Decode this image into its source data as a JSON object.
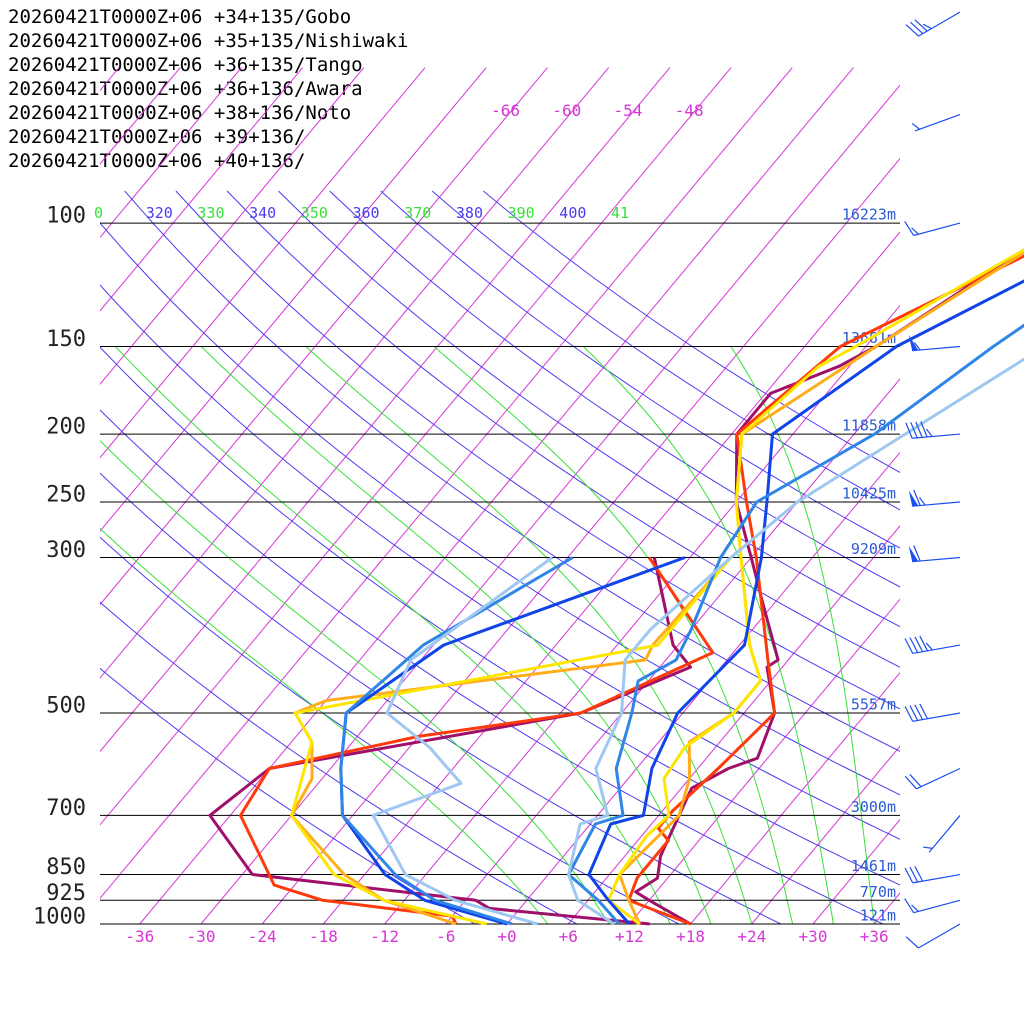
{
  "legend": [
    {
      "label": "20260421T0000Z+06 +34+135/Gobo",
      "color": "#a0106a"
    },
    {
      "label": "20260421T0000Z+06 +35+135/Nishiwaki",
      "color": "#ff3a0a"
    },
    {
      "label": "20260421T0000Z+06 +36+135/Tango",
      "color": "#ffae1a"
    },
    {
      "label": "20260421T0000Z+06 +36+136/Awara",
      "color": "#ffe600"
    },
    {
      "label": "20260421T0000Z+06 +38+136/Noto",
      "color": "#1044e8"
    },
    {
      "label": "20260421T0000Z+06 +39+136/",
      "color": "#2f86e6"
    },
    {
      "label": "20260421T0000Z+06 +40+136/",
      "color": "#9ec8f2"
    }
  ],
  "colors": {
    "isobar": "#000000",
    "isotherm": "#d636d6",
    "dry_adiabat": "#4a3cf0",
    "moist_adiabat": "#38e038",
    "height_label": "#2a5ad6",
    "wind_barb": "#1b4ef0"
  },
  "chart_data": {
    "type": "line",
    "pressure_levels": [
      {
        "p": 100,
        "label": "100",
        "height": "16223m"
      },
      {
        "p": 150,
        "label": "150",
        "height": "13661m"
      },
      {
        "p": 200,
        "label": "200",
        "height": "11858m"
      },
      {
        "p": 250,
        "label": "250",
        "height": "10425m"
      },
      {
        "p": 300,
        "label": "300",
        "height": "9209m"
      },
      {
        "p": 500,
        "label": "500",
        "height": "5557m"
      },
      {
        "p": 700,
        "label": "700",
        "height": "3000m"
      },
      {
        "p": 850,
        "label": "850",
        "height": "1461m"
      },
      {
        "p": 925,
        "label": "925",
        "height": "770m"
      },
      {
        "p": 1000,
        "label": "1000",
        "height": "121m"
      }
    ],
    "x_ticks": [
      "-36",
      "-30",
      "-24",
      "-18",
      "-12",
      "-6",
      "+0",
      "+6",
      "+12",
      "+18",
      "+24",
      "+30",
      "+36"
    ],
    "x_tick_values": [
      -36,
      -30,
      -24,
      -18,
      -12,
      -6,
      0,
      6,
      12,
      18,
      24,
      30,
      36
    ],
    "upper_isotherm_labels": [
      "-66",
      "-60",
      "-54",
      "-48"
    ],
    "theta_labels": [
      {
        "text": "0",
        "color": "#38e038"
      },
      {
        "text": "320",
        "color": "#4a3cf0"
      },
      {
        "text": "330",
        "color": "#38e038"
      },
      {
        "text": "340",
        "color": "#4a3cf0"
      },
      {
        "text": "350",
        "color": "#38e038"
      },
      {
        "text": "360",
        "color": "#4a3cf0"
      },
      {
        "text": "370",
        "color": "#38e038"
      },
      {
        "text": "380",
        "color": "#4a3cf0"
      },
      {
        "text": "390",
        "color": "#38e038"
      },
      {
        "text": "400",
        "color": "#4a3cf0"
      },
      {
        "text": "41",
        "color": "#38e038"
      }
    ],
    "series": [
      {
        "name": "20260421T0000Z+06 +34+135/Gobo",
        "temperature": [
          [
            1000,
            18
          ],
          [
            925,
            12
          ],
          [
            900,
            10
          ],
          [
            860,
            11
          ],
          [
            800,
            9.5
          ],
          [
            700,
            8
          ],
          [
            640,
            7
          ],
          [
            600,
            9
          ],
          [
            580,
            11
          ],
          [
            500,
            9
          ],
          [
            430,
            4.5
          ],
          [
            420,
            5
          ],
          [
            350,
            -1
          ],
          [
            300,
            -6
          ],
          [
            250,
            -12
          ],
          [
            200,
            -17.5
          ],
          [
            175,
            -17.5
          ],
          [
            160,
            -13
          ],
          [
            150,
            -11
          ],
          [
            100,
            -2.5
          ],
          [
            70,
            -2
          ],
          [
            55,
            13
          ]
        ],
        "dewpoint": [
          [
            1000,
            14
          ],
          [
            950,
            -3
          ],
          [
            925,
            -5
          ],
          [
            850,
            -29
          ],
          [
            700,
            -38
          ],
          [
            600,
            -36
          ],
          [
            500,
            -10
          ],
          [
            430,
            -3
          ],
          [
            400,
            -6.5
          ],
          [
            300,
            -15.5
          ]
        ]
      },
      {
        "name": "20260421T0000Z+06 +35+135/Nishiwaki",
        "temperature": [
          [
            1000,
            18
          ],
          [
            925,
            10
          ],
          [
            860,
            9
          ],
          [
            760,
            9
          ],
          [
            730,
            7
          ],
          [
            690,
            7
          ],
          [
            600,
            8
          ],
          [
            500,
            9
          ],
          [
            420,
            4
          ],
          [
            300,
            -5.5
          ],
          [
            250,
            -11
          ],
          [
            200,
            -17.5
          ],
          [
            150,
            -14.5
          ],
          [
            100,
            0
          ],
          [
            60,
            10
          ]
        ],
        "dewpoint": [
          [
            1000,
            -5
          ],
          [
            975,
            -6
          ],
          [
            925,
            -20
          ],
          [
            880,
            -26
          ],
          [
            700,
            -35
          ],
          [
            600,
            -36
          ],
          [
            540,
            -24
          ],
          [
            500,
            -10
          ],
          [
            410,
            -2
          ],
          [
            300,
            -16
          ]
        ]
      },
      {
        "name": "20260421T0000Z+06 +36+135/Tango",
        "temperature": [
          [
            1000,
            13
          ],
          [
            925,
            10
          ],
          [
            850,
            7
          ],
          [
            700,
            8
          ],
          [
            620,
            6
          ],
          [
            550,
            3
          ],
          [
            500,
            5
          ],
          [
            450,
            5
          ],
          [
            400,
            1
          ],
          [
            300,
            -7
          ],
          [
            250,
            -12
          ],
          [
            200,
            -17
          ],
          [
            150,
            -11
          ],
          [
            100,
            -2
          ],
          [
            70,
            10
          ]
        ],
        "dewpoint": [
          [
            1000,
            -5
          ],
          [
            925,
            -14
          ],
          [
            850,
            -20
          ],
          [
            700,
            -30
          ],
          [
            620,
            -31
          ],
          [
            550,
            -34
          ],
          [
            500,
            -38
          ],
          [
            480,
            -36
          ],
          [
            420,
            -8
          ],
          [
            400,
            -8.5
          ],
          [
            300,
            -8
          ]
        ]
      },
      {
        "name": "20260421T0000Z+06 +36+136/Awara",
        "temperature": [
          [
            1000,
            13
          ],
          [
            925,
            8
          ],
          [
            850,
            7
          ],
          [
            750,
            6.5
          ],
          [
            700,
            7
          ],
          [
            620,
            3.5
          ],
          [
            560,
            3
          ],
          [
            500,
            5
          ],
          [
            450,
            5
          ],
          [
            400,
            1
          ],
          [
            300,
            -7
          ],
          [
            250,
            -12
          ],
          [
            200,
            -17
          ],
          [
            160,
            -15
          ],
          [
            150,
            -13
          ],
          [
            100,
            -2
          ],
          [
            70,
            8
          ]
        ],
        "dewpoint": [
          [
            1000,
            -2
          ],
          [
            925,
            -14
          ],
          [
            850,
            -21
          ],
          [
            700,
            -30
          ],
          [
            620,
            -32
          ],
          [
            550,
            -34
          ],
          [
            500,
            -38
          ],
          [
            400,
            -8
          ],
          [
            300,
            -8
          ]
        ]
      },
      {
        "name": "20260421T0000Z+06 +38+136/Noto",
        "temperature": [
          [
            1000,
            12
          ],
          [
            925,
            8
          ],
          [
            850,
            4
          ],
          [
            720,
            2
          ],
          [
            700,
            4.5
          ],
          [
            600,
            1.5
          ],
          [
            500,
            -0.5
          ],
          [
            400,
            0.5
          ],
          [
            300,
            -5
          ],
          [
            250,
            -9
          ],
          [
            200,
            -14
          ],
          [
            150,
            -9
          ],
          [
            100,
            4.5
          ],
          [
            65,
            13
          ],
          [
            60,
            12
          ]
        ],
        "dewpoint": [
          [
            1000,
            0
          ],
          [
            925,
            -10
          ],
          [
            850,
            -16
          ],
          [
            700,
            -25
          ],
          [
            600,
            -29
          ],
          [
            500,
            -33
          ],
          [
            400,
            -29
          ],
          [
            300,
            -12.5
          ]
        ]
      },
      {
        "name": "20260421T0000Z+06 +39+136/",
        "temperature": [
          [
            1000,
            11
          ],
          [
            925,
            7
          ],
          [
            850,
            2
          ],
          [
            720,
            0.5
          ],
          [
            700,
            2.5
          ],
          [
            600,
            -2
          ],
          [
            500,
            -5
          ],
          [
            450,
            -7
          ],
          [
            420,
            -5
          ],
          [
            380,
            -6
          ],
          [
            300,
            -9
          ],
          [
            250,
            -10
          ],
          [
            200,
            -4
          ],
          [
            150,
            0.5
          ],
          [
            100,
            8
          ],
          [
            70,
            10
          ],
          [
            60,
            11
          ]
        ],
        "dewpoint": [
          [
            1000,
            0.5
          ],
          [
            925,
            -9
          ],
          [
            850,
            -15
          ],
          [
            700,
            -25
          ],
          [
            600,
            -29
          ],
          [
            500,
            -33
          ],
          [
            400,
            -31
          ],
          [
            300,
            -23.5
          ]
        ]
      },
      {
        "name": "20260421T0000Z+06 +40+136/",
        "temperature": [
          [
            1000,
            10.5
          ],
          [
            925,
            5
          ],
          [
            850,
            2
          ],
          [
            720,
            -1
          ],
          [
            700,
            1
          ],
          [
            600,
            -4
          ],
          [
            500,
            -6
          ],
          [
            420,
            -10
          ],
          [
            380,
            -10
          ],
          [
            300,
            -8
          ],
          [
            250,
            -6
          ],
          [
            200,
            -1
          ],
          [
            150,
            5.5
          ],
          [
            100,
            12
          ],
          [
            80,
            14
          ],
          [
            70,
            17
          ],
          [
            60,
            20
          ]
        ],
        "dewpoint": [
          [
            1000,
            3
          ],
          [
            925,
            -7
          ],
          [
            850,
            -14
          ],
          [
            700,
            -22
          ],
          [
            630,
            -16
          ],
          [
            560,
            -22
          ],
          [
            500,
            -29
          ],
          [
            420,
            -31
          ],
          [
            300,
            -25.5
          ]
        ]
      }
    ],
    "wind_barbs": [
      {
        "p": 1000,
        "dir": 240,
        "kt": 10
      },
      {
        "p": 925,
        "dir": 255,
        "kt": 15
      },
      {
        "p": 850,
        "dir": 260,
        "kt": 30
      },
      {
        "p": 700,
        "dir": 220,
        "kt": 5
      },
      {
        "p": 600,
        "dir": 245,
        "kt": 20
      },
      {
        "p": 500,
        "dir": 260,
        "kt": 40
      },
      {
        "p": 400,
        "dir": 260,
        "kt": 45
      },
      {
        "p": 300,
        "dir": 265,
        "kt": 60
      },
      {
        "p": 250,
        "dir": 265,
        "kt": 65
      },
      {
        "p": 200,
        "dir": 265,
        "kt": 45
      },
      {
        "p": 150,
        "dir": 265,
        "kt": 55
      },
      {
        "p": 100,
        "dir": 255,
        "kt": 15
      },
      {
        "p": 70,
        "dir": 250,
        "kt": 5
      },
      {
        "p": 50,
        "dir": 240,
        "kt": 35
      }
    ]
  }
}
